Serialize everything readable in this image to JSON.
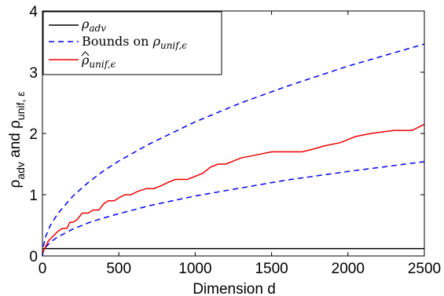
{
  "chart_data": {
    "type": "line",
    "xlabel": "Dimension d",
    "ylabel_main": "ρ",
    "ylabel_sub1": "adv",
    "ylabel_mid": " and ρ",
    "ylabel_sub2": "unif, ε",
    "xlim": [
      0,
      2500
    ],
    "ylim": [
      0,
      4
    ],
    "x_ticks": [
      0,
      500,
      1000,
      1500,
      2000,
      2500
    ],
    "y_ticks": [
      0,
      1,
      2,
      3,
      4
    ],
    "legend_position": "top-left",
    "series": [
      {
        "name_main": "ρ",
        "name_sub": "adv",
        "color": "#000000",
        "style": "solid",
        "x": [
          0,
          2500
        ],
        "y": [
          0.12,
          0.12
        ]
      },
      {
        "name_prefix": "Bounds on ",
        "name_main": "ρ",
        "name_sub": "unif,ϵ",
        "color": "#0000ee",
        "style": "dashed",
        "x": [
          0,
          5,
          20,
          50,
          100,
          200,
          300,
          400,
          500,
          700,
          1000,
          1300,
          1600,
          2000,
          2500
        ],
        "y": [
          0,
          0.15,
          0.31,
          0.49,
          0.69,
          0.98,
          1.2,
          1.39,
          1.55,
          1.83,
          2.19,
          2.5,
          2.77,
          3.1,
          3.46
        ]
      },
      {
        "name_prefix": "",
        "name_main": "ρ",
        "name_sub": "unif,ϵ",
        "color": "#0000ee",
        "style": "dashed",
        "x": [
          0,
          5,
          20,
          50,
          100,
          200,
          300,
          400,
          500,
          700,
          1000,
          1300,
          1600,
          2000,
          2500
        ],
        "y": [
          0,
          0.07,
          0.14,
          0.22,
          0.31,
          0.44,
          0.54,
          0.62,
          0.69,
          0.82,
          0.98,
          1.11,
          1.24,
          1.38,
          1.54
        ]
      },
      {
        "name_main": "ρ",
        "name_sub": "unif,ϵ",
        "name_hat": true,
        "color": "#ee0000",
        "style": "solid",
        "x": [
          0,
          20,
          40,
          60,
          80,
          100,
          130,
          160,
          180,
          200,
          230,
          260,
          300,
          330,
          370,
          400,
          430,
          470,
          500,
          540,
          580,
          620,
          680,
          730,
          780,
          820,
          870,
          950,
          1000,
          1050,
          1100,
          1150,
          1200,
          1300,
          1400,
          1500,
          1600,
          1700,
          1780,
          1850,
          1950,
          2050,
          2150,
          2300,
          2420,
          2500
        ],
        "y": [
          0.05,
          0.15,
          0.25,
          0.3,
          0.35,
          0.4,
          0.45,
          0.45,
          0.55,
          0.55,
          0.6,
          0.7,
          0.7,
          0.75,
          0.75,
          0.85,
          0.9,
          0.9,
          0.95,
          1.0,
          1.0,
          1.05,
          1.1,
          1.1,
          1.15,
          1.2,
          1.25,
          1.25,
          1.3,
          1.35,
          1.45,
          1.5,
          1.5,
          1.6,
          1.65,
          1.7,
          1.7,
          1.7,
          1.75,
          1.8,
          1.85,
          1.95,
          2.0,
          2.05,
          2.05,
          2.15
        ]
      }
    ]
  }
}
